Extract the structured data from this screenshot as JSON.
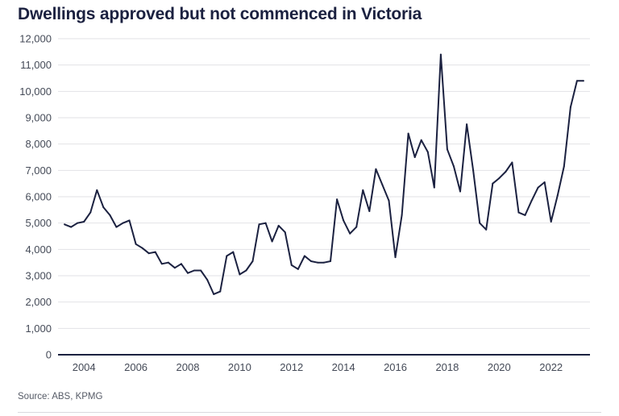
{
  "title": "Dwellings approved but not commenced in Victoria",
  "source": "Source: ABS, KPMG",
  "colors": {
    "line": "#1b2140",
    "grid": "#e2e2e6",
    "axis": "#1b2140",
    "text": "#444a57"
  },
  "chart_data": {
    "type": "line",
    "title": "Dwellings approved but not commenced in Victoria",
    "xlabel": "",
    "ylabel": "",
    "ylim": [
      0,
      12000
    ],
    "xlim": [
      2003.0,
      2023.5
    ],
    "grid": "horizontal",
    "yticks": [
      0,
      1000,
      2000,
      3000,
      4000,
      5000,
      6000,
      7000,
      8000,
      9000,
      10000,
      11000,
      12000
    ],
    "ytick_labels": [
      "0",
      "1,000",
      "2,000",
      "3,000",
      "4,000",
      "5,000",
      "6,000",
      "7,000",
      "8,000",
      "9,000",
      "10,000",
      "11,000",
      "12,000"
    ],
    "xticks": [
      2004,
      2006,
      2008,
      2010,
      2012,
      2014,
      2016,
      2018,
      2020,
      2022
    ],
    "xtick_labels": [
      "2004",
      "2006",
      "2008",
      "2010",
      "2012",
      "2014",
      "2016",
      "2018",
      "2020",
      "2022"
    ],
    "series": [
      {
        "x": [
          2003.25,
          2003.5,
          2003.75,
          2004.0,
          2004.25,
          2004.5,
          2004.75,
          2005.0,
          2005.25,
          2005.5,
          2005.75,
          2006.0,
          2006.25,
          2006.5,
          2006.75,
          2007.0,
          2007.25,
          2007.5,
          2007.75,
          2008.0,
          2008.25,
          2008.5,
          2008.75,
          2009.0,
          2009.25,
          2009.5,
          2009.75,
          2010.0,
          2010.25,
          2010.5,
          2010.75,
          2011.0,
          2011.25,
          2011.5,
          2011.75,
          2012.0,
          2012.25,
          2012.5,
          2012.75,
          2013.0,
          2013.25,
          2013.5,
          2013.75,
          2014.0,
          2014.25,
          2014.5,
          2014.75,
          2015.0,
          2015.25,
          2015.5,
          2015.75,
          2016.0,
          2016.25,
          2016.5,
          2016.75,
          2017.0,
          2017.25,
          2017.5,
          2017.75,
          2018.0,
          2018.25,
          2018.5,
          2018.75,
          2019.0,
          2019.25,
          2019.5,
          2019.75,
          2020.0,
          2020.25,
          2020.5,
          2020.75,
          2021.0,
          2021.25,
          2021.5,
          2021.75,
          2022.0,
          2022.25,
          2022.5,
          2022.75,
          2023.0,
          2023.25
        ],
        "values": [
          4950,
          4850,
          5000,
          5050,
          5400,
          6250,
          5600,
          5300,
          4850,
          5000,
          5100,
          4200,
          4050,
          3850,
          3900,
          3450,
          3500,
          3300,
          3450,
          3100,
          3200,
          3200,
          2850,
          2300,
          2400,
          3750,
          3900,
          3050,
          3200,
          3550,
          4950,
          5000,
          4300,
          4900,
          4650,
          3400,
          3250,
          3750,
          3550,
          3500,
          3500,
          3550,
          5900,
          5100,
          4600,
          4850,
          6250,
          5450,
          7050,
          6450,
          5850,
          3700,
          5300,
          8400,
          7500,
          8150,
          7700,
          6350,
          11400,
          7800,
          7150,
          6200,
          8750,
          7000,
          5000,
          4750,
          6500,
          6700,
          6950,
          7300,
          5400,
          5300,
          5850,
          6350,
          6550,
          5050,
          6050,
          7150,
          9400,
          10400,
          10400
        ]
      }
    ]
  }
}
